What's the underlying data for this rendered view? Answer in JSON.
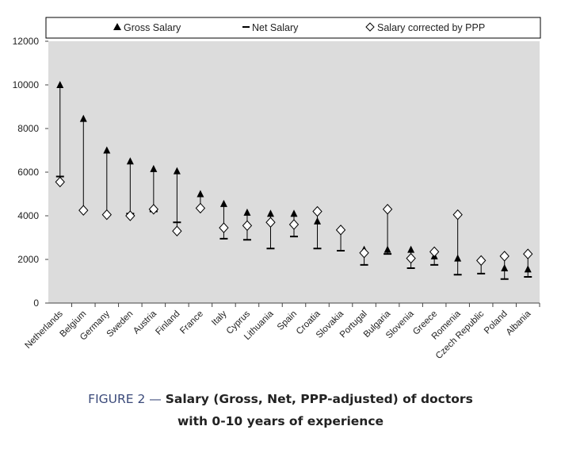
{
  "chart_data": {
    "type": "scatter",
    "categories": [
      "Netherlands",
      "Belgium",
      "Germany",
      "Sweden",
      "Austria",
      "Finland",
      "France",
      "Italy",
      "Cyprus",
      "Lithuania",
      "Spain",
      "Croatia",
      "Slovakia",
      "Portugal",
      "Bulgaria",
      "Slovenia",
      "Greece",
      "Romenia",
      "Czech Republic",
      "Poland",
      "Albania"
    ],
    "series": [
      {
        "name": "Gross Salary",
        "marker": "triangle",
        "values": [
          10000,
          8450,
          7000,
          6500,
          6150,
          6050,
          5000,
          4550,
          4150,
          4100,
          4100,
          3750,
          null,
          2450,
          2450,
          2450,
          2150,
          2050,
          null,
          1600,
          1550
        ]
      },
      {
        "name": "Net Salary",
        "marker": "dash",
        "values": [
          5800,
          null,
          null,
          4100,
          4200,
          3700,
          4350,
          2950,
          2900,
          2500,
          3050,
          2500,
          2400,
          1750,
          2250,
          1600,
          1750,
          1300,
          1350,
          1100,
          1200
        ]
      },
      {
        "name": "Salary corrected by PPP",
        "marker": "diamond",
        "values": [
          5550,
          4250,
          4050,
          4000,
          4300,
          3300,
          4350,
          3450,
          3550,
          3700,
          3600,
          4200,
          3350,
          2300,
          4300,
          2050,
          2350,
          4050,
          1950,
          2150,
          2250
        ]
      }
    ],
    "ylim": [
      0,
      12000
    ],
    "yticks": [
      "12000",
      "10000",
      "8000",
      "6000",
      "4000",
      "2000",
      "0"
    ],
    "grid": false,
    "legend_placement": "top",
    "colors": {
      "plot_bg": "#dcdcdc",
      "marker": "#000000",
      "axis_text": "#222222"
    }
  },
  "caption": {
    "label": "FIGURE 2 —",
    "title_line1": "Salary (Gross, Net, PPP-adjusted) of doctors",
    "title_line2": "with 0-10 years of experience"
  }
}
